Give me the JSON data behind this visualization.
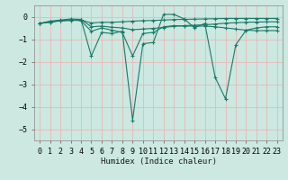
{
  "xlabel": "Humidex (Indice chaleur)",
  "xlim": [
    -0.5,
    23.5
  ],
  "ylim": [
    -5.5,
    0.5
  ],
  "yticks": [
    0,
    -1,
    -2,
    -3,
    -4,
    -5
  ],
  "xticks": [
    0,
    1,
    2,
    3,
    4,
    5,
    6,
    7,
    8,
    9,
    10,
    11,
    12,
    13,
    14,
    15,
    16,
    17,
    18,
    19,
    20,
    21,
    22,
    23
  ],
  "bg_color": "#cce8e0",
  "grid_color": "#e8b8b8",
  "line_color": "#1a7a6a",
  "series": [
    {
      "x": [
        0,
        1,
        2,
        3,
        4,
        5,
        6,
        7,
        8,
        9,
        10,
        11,
        12,
        13,
        14,
        15,
        16,
        17,
        18,
        19,
        20,
        21,
        22,
        23
      ],
      "y": [
        -0.3,
        -0.2,
        -0.15,
        -0.1,
        -0.12,
        -1.75,
        -0.7,
        -0.75,
        -0.65,
        -4.6,
        -1.2,
        -1.15,
        0.1,
        0.1,
        -0.1,
        -0.5,
        -0.3,
        -2.7,
        -3.65,
        -1.25,
        -0.6,
        -0.5,
        -0.45,
        -0.45
      ]
    },
    {
      "x": [
        0,
        1,
        2,
        3,
        4,
        5,
        6,
        7,
        8,
        9,
        10,
        11,
        12,
        13,
        14,
        15,
        16,
        17,
        18,
        19,
        20,
        21,
        22,
        23
      ],
      "y": [
        -0.3,
        -0.22,
        -0.18,
        -0.15,
        -0.18,
        -0.65,
        -0.5,
        -0.6,
        -0.7,
        -1.75,
        -0.75,
        -0.7,
        -0.45,
        -0.4,
        -0.42,
        -0.42,
        -0.42,
        -0.45,
        -0.5,
        -0.55,
        -0.6,
        -0.62,
        -0.62,
        -0.62
      ]
    },
    {
      "x": [
        0,
        1,
        2,
        3,
        4,
        5,
        6,
        7,
        8,
        9,
        10,
        11,
        12,
        13,
        14,
        15,
        16,
        17,
        18,
        19,
        20,
        21,
        22,
        23
      ],
      "y": [
        -0.3,
        -0.25,
        -0.17,
        -0.15,
        -0.12,
        -0.45,
        -0.42,
        -0.47,
        -0.5,
        -0.58,
        -0.55,
        -0.52,
        -0.48,
        -0.43,
        -0.4,
        -0.38,
        -0.36,
        -0.33,
        -0.29,
        -0.27,
        -0.25,
        -0.24,
        -0.23,
        -0.23
      ]
    },
    {
      "x": [
        0,
        1,
        2,
        3,
        4,
        5,
        6,
        7,
        8,
        9,
        10,
        11,
        12,
        13,
        14,
        15,
        16,
        17,
        18,
        19,
        20,
        21,
        22,
        23
      ],
      "y": [
        -0.3,
        -0.24,
        -0.19,
        -0.17,
        -0.15,
        -0.28,
        -0.25,
        -0.25,
        -0.23,
        -0.2,
        -0.18,
        -0.17,
        -0.15,
        -0.13,
        -0.12,
        -0.11,
        -0.1,
        -0.09,
        -0.08,
        -0.08,
        -0.08,
        -0.08,
        -0.08,
        -0.08
      ]
    }
  ]
}
